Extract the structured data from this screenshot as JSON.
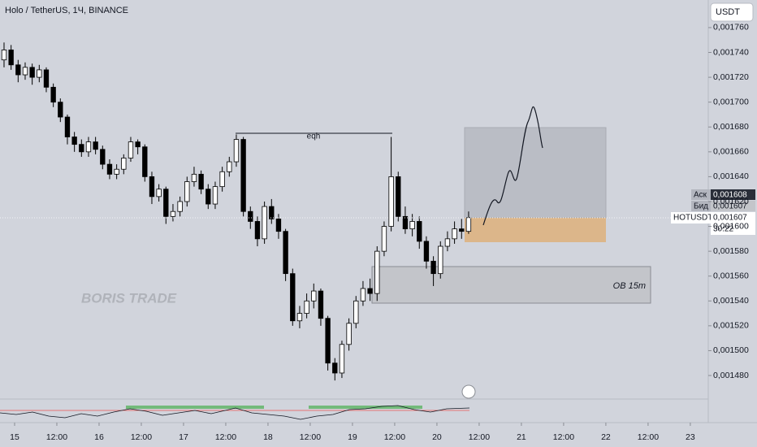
{
  "header": {
    "title": "Holo / TetherUS, 1Ч, BINANCE",
    "currency": "USDT"
  },
  "chart_data": {
    "type": "candlestick",
    "x": [
      -3,
      -1,
      1,
      3,
      5,
      7,
      9,
      11,
      13,
      15,
      17,
      19,
      21,
      23,
      25,
      27,
      29,
      31,
      33,
      35,
      37,
      39,
      41,
      43,
      45,
      47,
      49,
      51,
      53,
      55,
      57,
      59,
      61,
      63,
      65,
      67,
      69,
      71,
      73,
      75,
      77,
      79,
      81,
      83,
      85,
      87,
      89,
      91,
      93,
      95,
      97,
      99,
      101,
      103,
      105,
      107,
      109,
      111,
      113,
      115,
      117,
      119,
      121,
      123,
      125,
      127,
      129
    ],
    "open": [
      0.001734,
      0.001742,
      0.00173,
      0.001722,
      0.001728,
      0.00172,
      0.001726,
      0.001712,
      0.0017,
      0.001688,
      0.001672,
      0.001666,
      0.00166,
      0.001668,
      0.001662,
      0.00165,
      0.001642,
      0.001646,
      0.001655,
      0.001668,
      0.001664,
      0.00164,
      0.001624,
      0.00163,
      0.001608,
      0.001612,
      0.00162,
      0.001636,
      0.001642,
      0.00163,
      0.001618,
      0.001632,
      0.001644,
      0.001652,
      0.00167,
      0.001612,
      0.001604,
      0.00159,
      0.001616,
      0.001606,
      0.001596,
      0.001562,
      0.001524,
      0.00153,
      0.00154,
      0.001548,
      0.001526,
      0.00149,
      0.001482,
      0.001505,
      0.001522,
      0.00154,
      0.00155,
      0.001546,
      0.00158,
      0.0016,
      0.00164,
      0.001608,
      0.001598,
      0.001604,
      0.001588,
      0.001572,
      0.001562,
      0.001584,
      0.00159,
      0.001598,
      0.001596
    ],
    "high": [
      0.001748,
      0.001746,
      0.001734,
      0.001732,
      0.001731,
      0.00173,
      0.001728,
      0.001715,
      0.001703,
      0.00169,
      0.001676,
      0.00167,
      0.001672,
      0.001672,
      0.001665,
      0.001654,
      0.00165,
      0.001658,
      0.001672,
      0.00167,
      0.001666,
      0.001644,
      0.001634,
      0.001632,
      0.001618,
      0.001624,
      0.00164,
      0.001648,
      0.001645,
      0.001634,
      0.001636,
      0.001648,
      0.001656,
      0.001674,
      0.001672,
      0.001616,
      0.001608,
      0.00162,
      0.001622,
      0.00161,
      0.001598,
      0.001566,
      0.001536,
      0.001546,
      0.001554,
      0.00155,
      0.001528,
      0.001494,
      0.001508,
      0.001526,
      0.001544,
      0.001556,
      0.001558,
      0.001584,
      0.001604,
      0.001672,
      0.001644,
      0.001616,
      0.00161,
      0.001608,
      0.001592,
      0.001576,
      0.001588,
      0.001596,
      0.001604,
      0.001606,
      0.001612
    ],
    "low": [
      0.001728,
      0.001726,
      0.001716,
      0.001718,
      0.001714,
      0.001716,
      0.001708,
      0.001696,
      0.001684,
      0.001666,
      0.00166,
      0.001656,
      0.001656,
      0.001658,
      0.001646,
      0.001638,
      0.001638,
      0.001642,
      0.001652,
      0.001658,
      0.001636,
      0.001618,
      0.00162,
      0.001602,
      0.001604,
      0.001608,
      0.001616,
      0.001632,
      0.001626,
      0.001614,
      0.001614,
      0.001628,
      0.00164,
      0.001648,
      0.001608,
      0.001598,
      0.001584,
      0.001586,
      0.001602,
      0.00159,
      0.001556,
      0.00152,
      0.001518,
      0.001526,
      0.001534,
      0.00152,
      0.001484,
      0.001476,
      0.001478,
      0.0015,
      0.001518,
      0.001536,
      0.00154,
      0.00154,
      0.001576,
      0.001596,
      0.001604,
      0.001594,
      0.001592,
      0.001582,
      0.001566,
      0.001552,
      0.001558,
      0.00158,
      0.001586,
      0.00159,
      0.001594
    ],
    "close": [
      0.001742,
      0.00173,
      0.001722,
      0.001728,
      0.00172,
      0.001726,
      0.001712,
      0.0017,
      0.001688,
      0.001672,
      0.001666,
      0.00166,
      0.001668,
      0.001662,
      0.00165,
      0.001642,
      0.001646,
      0.001655,
      0.001668,
      0.001664,
      0.00164,
      0.001624,
      0.00163,
      0.001608,
      0.001612,
      0.00162,
      0.001636,
      0.001642,
      0.00163,
      0.001618,
      0.001632,
      0.001644,
      0.001652,
      0.00167,
      0.001612,
      0.001604,
      0.00159,
      0.001616,
      0.001606,
      0.001596,
      0.001562,
      0.001524,
      0.00153,
      0.00154,
      0.001548,
      0.001526,
      0.00149,
      0.001482,
      0.001505,
      0.001522,
      0.00154,
      0.00155,
      0.001546,
      0.00158,
      0.0016,
      0.00164,
      0.001608,
      0.001598,
      0.001604,
      0.001588,
      0.001572,
      0.001562,
      0.001584,
      0.00159,
      0.001598,
      0.001596,
      0.001607
    ],
    "up_color": "#ffffff",
    "down_color": "#000000",
    "xlim": [
      -4.15,
      197.1
    ],
    "xticks": [
      {
        "value": 0,
        "label": "15"
      },
      {
        "value": 12,
        "label": "12:00"
      },
      {
        "value": 24,
        "label": "16"
      },
      {
        "value": 36,
        "label": "12:00"
      },
      {
        "value": 48,
        "label": "17"
      },
      {
        "value": 60,
        "label": "12:00"
      },
      {
        "value": 72,
        "label": "18"
      },
      {
        "value": 84,
        "label": "12:00"
      },
      {
        "value": 96,
        "label": "19"
      },
      {
        "value": 108,
        "label": "12:00"
      },
      {
        "value": 120,
        "label": "20"
      },
      {
        "value": 132,
        "label": "12:00"
      },
      {
        "value": 144,
        "label": "21"
      },
      {
        "value": 156,
        "label": "12:00"
      },
      {
        "value": 168,
        "label": "22"
      },
      {
        "value": 180,
        "label": "12:00"
      },
      {
        "value": 192,
        "label": "23"
      }
    ],
    "ylim": [
      0.0014617,
      0.0017822
    ],
    "yticks": [
      {
        "value": 0.00176,
        "label": "0,001760"
      },
      {
        "value": 0.00174,
        "label": "0,001740"
      },
      {
        "value": 0.00172,
        "label": "0,001720"
      },
      {
        "value": 0.0017,
        "label": "0,001700"
      },
      {
        "value": 0.00168,
        "label": "0,001680"
      },
      {
        "value": 0.00166,
        "label": "0,001660"
      },
      {
        "value": 0.00164,
        "label": "0,001640"
      },
      {
        "value": 0.00162,
        "label": "0,001620"
      },
      {
        "value": 0.0016,
        "label": "0,001600"
      },
      {
        "value": 0.00158,
        "label": "0,001580"
      },
      {
        "value": 0.00156,
        "label": "0,001560"
      },
      {
        "value": 0.00154,
        "label": "0,001540"
      },
      {
        "value": 0.00152,
        "label": "0,001520"
      },
      {
        "value": 0.0015,
        "label": "0,001500"
      },
      {
        "value": 0.00148,
        "label": "0,001480"
      }
    ]
  },
  "annotations": {
    "eqh": "eqh",
    "ob": "OB 15m",
    "watermark": "BORIS TRADE"
  },
  "price_badges": {
    "ask_label": "Аск",
    "ask": "0,001608",
    "bid_label": "Бид",
    "bid": "0,001607",
    "symbol": "HOTUSDT",
    "last": "0,001607",
    "countdown": "30:22"
  }
}
